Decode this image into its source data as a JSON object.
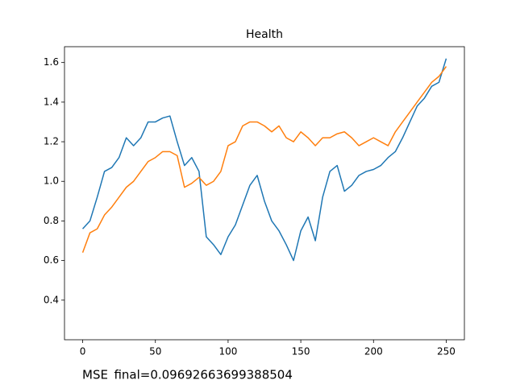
{
  "chart_data": {
    "type": "line",
    "title": "Health",
    "annotation": "MSE_final=0.09692663699388504",
    "x": [
      0,
      5,
      10,
      15,
      20,
      25,
      30,
      35,
      40,
      45,
      50,
      55,
      60,
      65,
      70,
      75,
      80,
      85,
      90,
      95,
      100,
      105,
      110,
      115,
      120,
      125,
      130,
      135,
      140,
      145,
      150,
      155,
      160,
      165,
      170,
      175,
      180,
      185,
      190,
      195,
      200,
      205,
      210,
      215,
      220,
      225,
      230,
      235,
      240,
      245,
      250
    ],
    "series": [
      {
        "color": "#1f77b4",
        "values": [
          0.76,
          0.8,
          0.92,
          1.05,
          1.07,
          1.12,
          1.22,
          1.18,
          1.22,
          1.3,
          1.3,
          1.32,
          1.33,
          1.2,
          1.08,
          1.12,
          1.05,
          0.72,
          0.68,
          0.63,
          0.72,
          0.78,
          0.88,
          0.98,
          1.03,
          0.9,
          0.8,
          0.75,
          0.68,
          0.6,
          0.75,
          0.82,
          0.7,
          0.92,
          1.05,
          1.08,
          0.95,
          0.98,
          1.03,
          1.05,
          1.06,
          1.08,
          1.12,
          1.15,
          1.22,
          1.3,
          1.38,
          1.42,
          1.48,
          1.5,
          1.62
        ]
      },
      {
        "color": "#ff7f0e",
        "values": [
          0.64,
          0.74,
          0.76,
          0.83,
          0.87,
          0.92,
          0.97,
          1.0,
          1.05,
          1.1,
          1.12,
          1.15,
          1.15,
          1.13,
          0.97,
          0.99,
          1.02,
          0.98,
          1.0,
          1.05,
          1.18,
          1.2,
          1.28,
          1.3,
          1.3,
          1.28,
          1.25,
          1.28,
          1.22,
          1.2,
          1.25,
          1.22,
          1.18,
          1.22,
          1.22,
          1.24,
          1.25,
          1.22,
          1.18,
          1.2,
          1.22,
          1.2,
          1.18,
          1.25,
          1.3,
          1.35,
          1.4,
          1.45,
          1.5,
          1.53,
          1.58
        ]
      }
    ],
    "xlim": [
      -12.5,
      262.5
    ],
    "xticks": [
      0,
      50,
      100,
      150,
      200,
      250
    ],
    "ylim": [
      0.2,
      1.68
    ],
    "yticks": [
      0.4,
      0.6,
      0.8,
      {
        "value": 1,
        "label": "1.0"
      },
      1.2,
      1.4,
      1.6
    ]
  }
}
